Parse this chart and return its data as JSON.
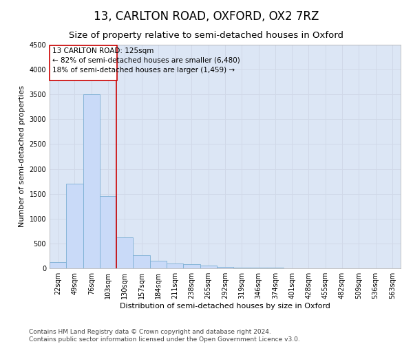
{
  "title": "13, CARLTON ROAD, OXFORD, OX2 7RZ",
  "subtitle": "Size of property relative to semi-detached houses in Oxford",
  "xlabel": "Distribution of semi-detached houses by size in Oxford",
  "ylabel": "Number of semi-detached properties",
  "categories": [
    "22sqm",
    "49sqm",
    "76sqm",
    "103sqm",
    "130sqm",
    "157sqm",
    "184sqm",
    "211sqm",
    "238sqm",
    "265sqm",
    "292sqm",
    "319sqm",
    "346sqm",
    "374sqm",
    "401sqm",
    "428sqm",
    "455sqm",
    "482sqm",
    "509sqm",
    "536sqm",
    "563sqm"
  ],
  "values": [
    120,
    1700,
    3500,
    1450,
    620,
    270,
    150,
    100,
    80,
    55,
    30,
    20,
    10,
    8,
    5,
    3,
    2,
    1,
    1,
    1,
    1
  ],
  "bar_color": "#c9daf8",
  "bar_edge_color": "#7bafd4",
  "property_bin_index": 3,
  "annotation_title": "13 CARLTON ROAD: 125sqm",
  "annotation_line1": "← 82% of semi-detached houses are smaller (6,480)",
  "annotation_line2": "18% of semi-detached houses are larger (1,459) →",
  "vline_color": "#cc0000",
  "box_edge_color": "#cc0000",
  "ylim": [
    0,
    4500
  ],
  "yticks": [
    0,
    500,
    1000,
    1500,
    2000,
    2500,
    3000,
    3500,
    4000,
    4500
  ],
  "grid_color": "#d0d8e8",
  "background_color": "#ffffff",
  "plot_bg_color": "#dce6f5",
  "footer": "Contains HM Land Registry data © Crown copyright and database right 2024.\nContains public sector information licensed under the Open Government Licence v3.0.",
  "title_fontsize": 12,
  "subtitle_fontsize": 9.5,
  "axis_label_fontsize": 8,
  "tick_fontsize": 7,
  "annotation_fontsize": 7.5,
  "footer_fontsize": 6.5
}
